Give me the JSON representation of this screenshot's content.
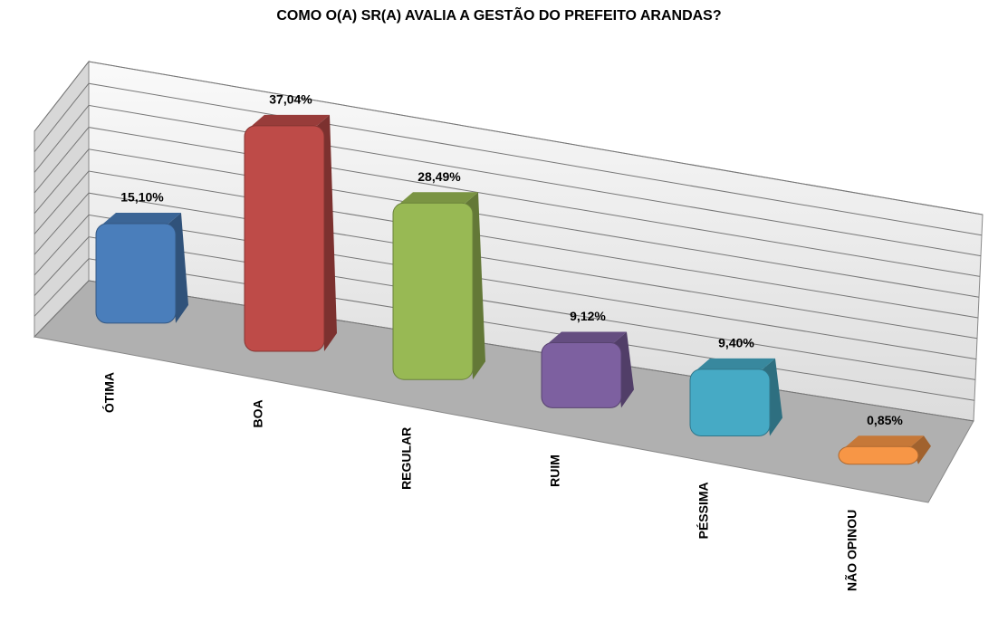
{
  "chart_data": {
    "type": "bar3d",
    "title": "COMO O(A) SR(A) AVALIA A GESTÃO DO PREFEITO ARANDAS?",
    "categories": [
      "ÓTIMA",
      "BOA",
      "REGULAR",
      "RUIM",
      "PÉSSIMA",
      "NÃO OPINOU"
    ],
    "values": [
      15.1,
      37.04,
      28.49,
      9.12,
      9.4,
      0.85
    ],
    "value_labels": [
      "15,10%",
      "37,04%",
      "28,49%",
      "9,12%",
      "9,40%",
      "0,85%"
    ],
    "colors": [
      "#4a7ebb",
      "#be4b48",
      "#98b954",
      "#7d60a0",
      "#46aac5",
      "#f79646"
    ],
    "ylim": [
      0,
      40
    ],
    "yticks": [
      0,
      4,
      8,
      12,
      16,
      20,
      24,
      28,
      32,
      36,
      40
    ],
    "grid": true
  }
}
